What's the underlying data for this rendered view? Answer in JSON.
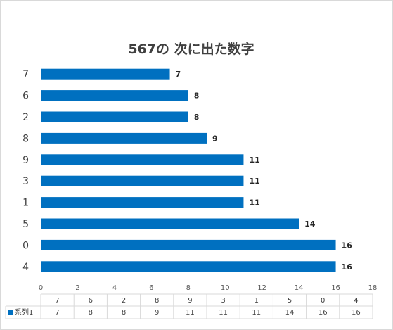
{
  "chart_data": {
    "type": "bar",
    "orientation": "horizontal",
    "title": "567の 次に出た数字",
    "categories": [
      "4",
      "0",
      "5",
      "1",
      "3",
      "9",
      "8",
      "2",
      "6",
      "7"
    ],
    "series": [
      {
        "name": "系列1",
        "values": [
          16,
          16,
          14,
          11,
          11,
          11,
          9,
          8,
          8,
          7
        ],
        "color": "#0070C0"
      }
    ],
    "xlim": [
      0,
      18
    ],
    "x_ticks": [
      0,
      2,
      4,
      6,
      8,
      10,
      12,
      14,
      16,
      18
    ],
    "data_labels": true,
    "data_table": true,
    "grid": false
  }
}
